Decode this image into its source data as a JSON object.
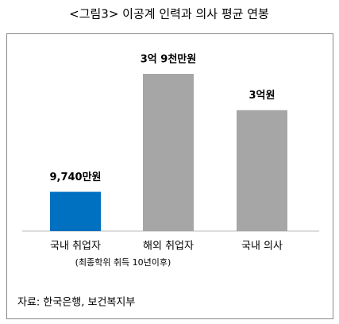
{
  "chart_data": {
    "type": "bar",
    "title": "<그림3> 이공계 인력과 의사 평균 연봉",
    "categories": [
      "국내 취업자",
      "해외 취업자",
      "국내 의사"
    ],
    "values": [
      9740,
      39000,
      30000
    ],
    "value_labels": [
      "9,740만원",
      "3억 9천만원",
      "3억원"
    ],
    "colors": [
      "#0070c0",
      "#a6a6a6",
      "#a6a6a6"
    ],
    "note": "(최종학위 취득 10년이후)",
    "source": "자료: 한국은행, 보건복지부"
  }
}
